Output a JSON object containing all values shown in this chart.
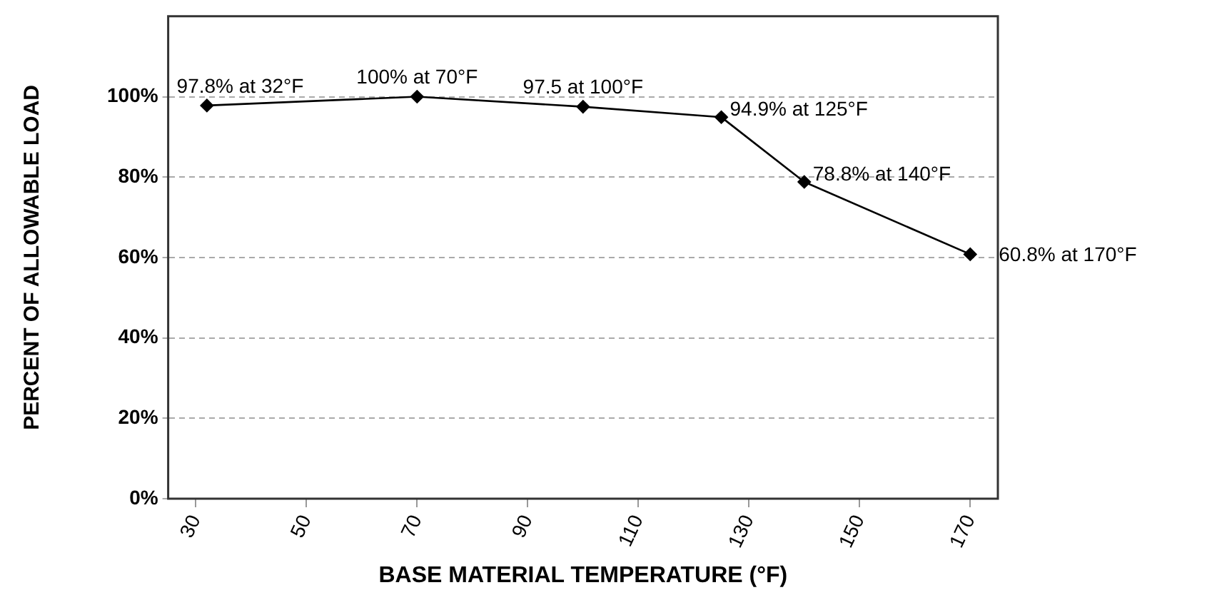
{
  "chart_data": {
    "type": "line",
    "xlabel": "BASE MATERIAL TEMPERATURE (°F)",
    "ylabel": "PERCENT OF ALLOWABLE LOAD",
    "x": [
      32,
      70,
      100,
      125,
      140,
      170
    ],
    "series": [
      {
        "color": "#000000",
        "values": [
          97.8,
          100,
          97.5,
          94.9,
          78.8,
          60.8
        ]
      }
    ],
    "xlim": [
      25,
      175
    ],
    "xticks": [
      30,
      50,
      70,
      90,
      110,
      130,
      150,
      170
    ],
    "ylim": [
      0,
      120
    ],
    "yticks": [
      {
        "value": 0,
        "label": "0%"
      },
      {
        "value": 20,
        "label": "20%"
      },
      {
        "value": 40,
        "label": "40%"
      },
      {
        "value": 60,
        "label": "60%"
      },
      {
        "value": 80,
        "label": "80%"
      },
      {
        "value": 100,
        "label": "100%"
      }
    ],
    "grid": "y",
    "legend": false,
    "marker": "diamond",
    "line_style": "solid",
    "annotations": [
      {
        "text": "97.8% at 32°F",
        "x": 32,
        "y": 97.8
      },
      {
        "text": "100% at 70°F",
        "x": 70,
        "y": 100
      },
      {
        "text": "97.5 at 100°F",
        "x": 100,
        "y": 97.5
      },
      {
        "text": "94.9% at 125°F",
        "x": 125,
        "y": 94.9
      },
      {
        "text": "78.8% at 140°F",
        "x": 140,
        "y": 78.8
      },
      {
        "text": "60.8% at 170°F",
        "x": 170,
        "y": 60.8
      }
    ]
  }
}
